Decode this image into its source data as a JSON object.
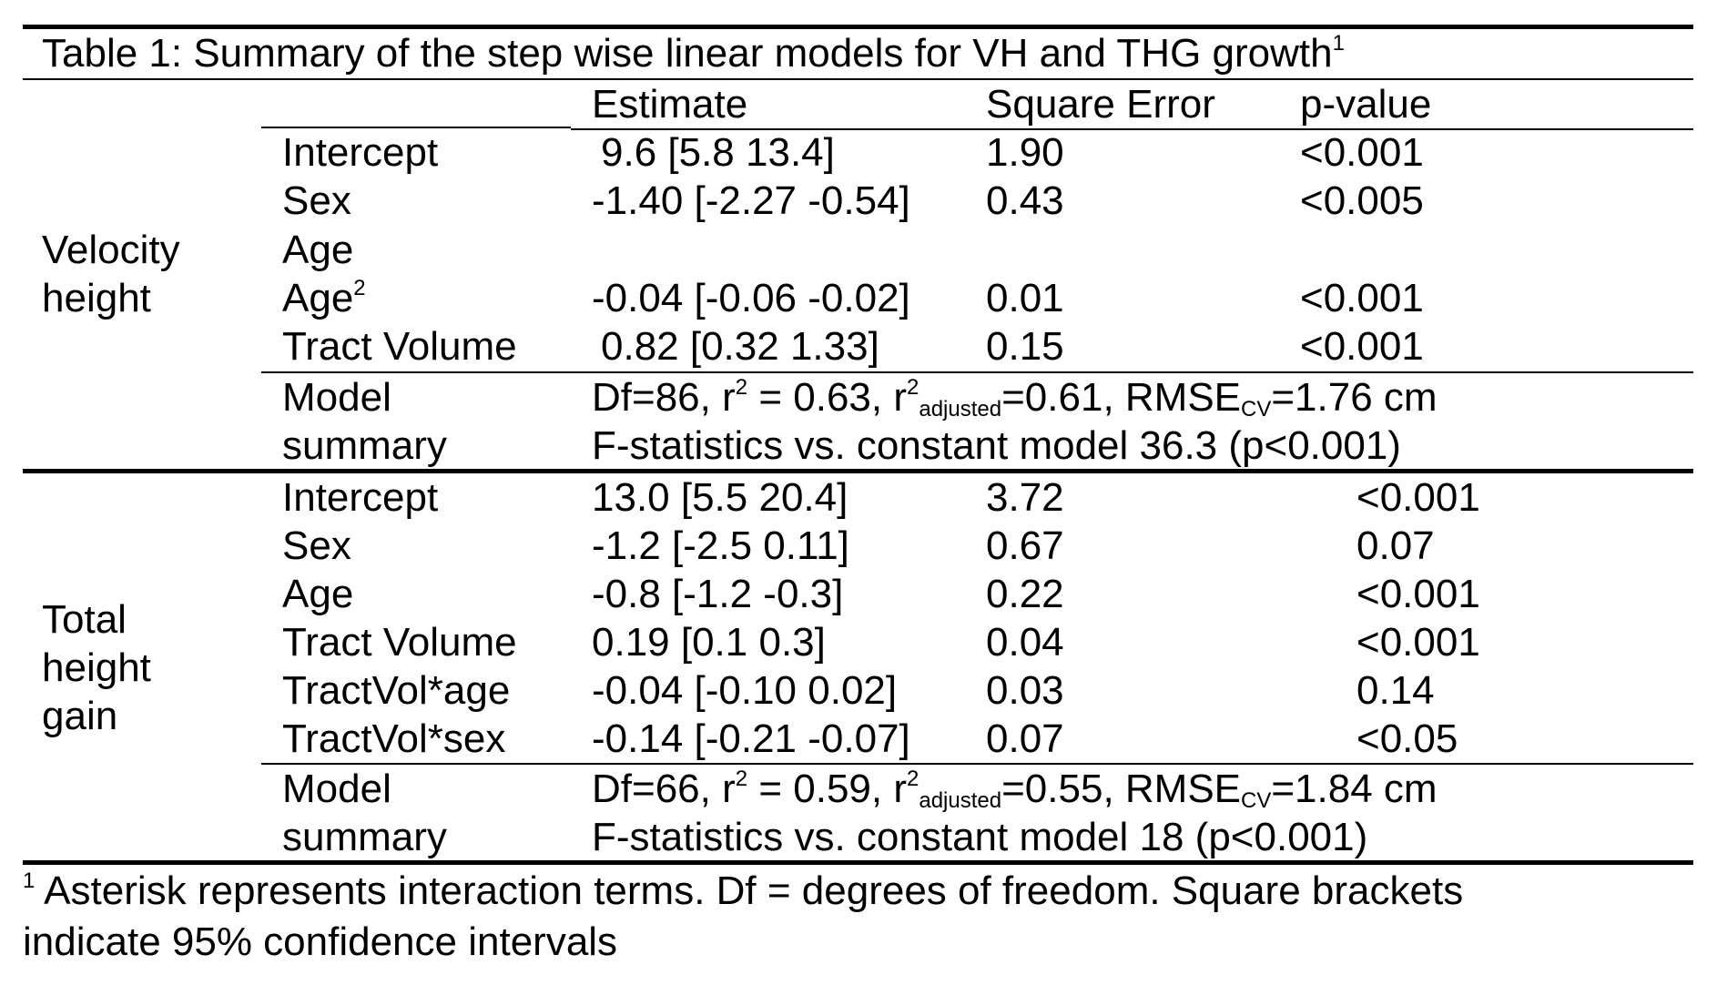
{
  "table": {
    "caption": "Table 1: Summary of the step wise linear models for VH and THG growth",
    "caption_footnote_mark": "1",
    "headers": {
      "estimate": "Estimate",
      "square_error": "Square Error",
      "p_value": "p-value"
    },
    "velocity_group": {
      "label_line1": "Velocity",
      "label_line2": "height",
      "rows": [
        {
          "term": "Intercept",
          "estimate": "9.6 [5.8 13.4]",
          "se": "1.90",
          "p": "<0.001"
        },
        {
          "term": "Sex",
          "estimate": "-1.40 [-2.27 -0.54]",
          "se": "0.43",
          "p": "<0.005"
        },
        {
          "term": "Age",
          "estimate": "",
          "se": "",
          "p": ""
        },
        {
          "term": "Age",
          "term_sup": "2",
          "estimate": "-0.04 [-0.06 -0.02]",
          "se": "0.01",
          "p": "<0.001"
        },
        {
          "term": "Tract Volume",
          "estimate": "0.82 [0.32 1.33]",
          "se": "0.15",
          "p": "<0.001"
        }
      ],
      "summary": {
        "label_line1": "Model",
        "label_line2": "summary",
        "df": "Df=86, r",
        "r2_sup": "2",
        "r2_value": " = 0.63, r",
        "r2adj_sup": "2",
        "r2adj_sub": "adjusted",
        "r2adj_value": "=0.61, RMSE",
        "rmse_sub": "CV",
        "rmse_value": "=1.76 cm",
        "fstat": "F-statistics vs. constant model 36.3 (p<0.001)"
      }
    },
    "total_group": {
      "label_line1": "Total",
      "label_line2": "height",
      "label_line3": "gain",
      "rows": [
        {
          "term": "Intercept",
          "estimate": "13.0 [5.5 20.4]",
          "se": "3.72",
          "p": "<0.001"
        },
        {
          "term": "Sex",
          "estimate": "-1.2 [-2.5 0.11]",
          "se": "0.67",
          "p": "0.07"
        },
        {
          "term": "Age",
          "estimate": "-0.8 [-1.2 -0.3]",
          "se": "0.22",
          "p": "<0.001"
        },
        {
          "term": "Tract Volume",
          "estimate": "0.19 [0.1 0.3]",
          "se": "0.04",
          "p": "<0.001"
        },
        {
          "term": "TractVol*age",
          "estimate": "-0.04 [-0.10 0.02]",
          "se": "0.03",
          "p": "0.14"
        },
        {
          "term": "TractVol*sex",
          "estimate": "-0.14 [-0.21 -0.07]",
          "se": "0.07",
          "p": "<0.05"
        }
      ],
      "summary": {
        "label_line1": "Model",
        "label_line2": "summary",
        "df": "Df=66, r",
        "r2_sup": "2",
        "r2_value": " = 0.59, r",
        "r2adj_sup": "2",
        "r2adj_sub": "adjusted",
        "r2adj_value": "=0.55, RMSE",
        "rmse_sub": "CV",
        "rmse_value": "=1.84 cm",
        "fstat": "F-statistics vs. constant model 18 (p<0.001)"
      }
    },
    "footnote": {
      "mark": "1",
      "line1": " Asterisk represents interaction terms. Df = degrees of freedom. Square brackets",
      "line2": "indicate 95% confidence intervals"
    }
  }
}
